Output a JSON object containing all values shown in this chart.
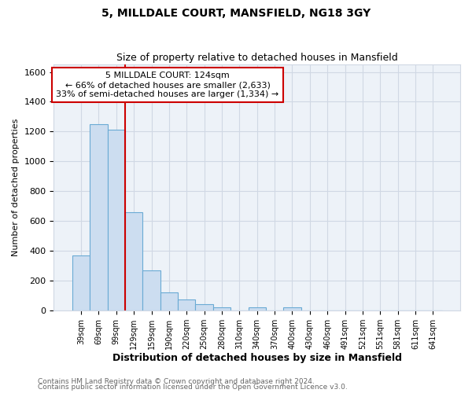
{
  "title": "5, MILLDALE COURT, MANSFIELD, NG18 3GY",
  "subtitle": "Size of property relative to detached houses in Mansfield",
  "xlabel": "Distribution of detached houses by size in Mansfield",
  "ylabel": "Number of detached properties",
  "bar_labels": [
    "39sqm",
    "69sqm",
    "99sqm",
    "129sqm",
    "159sqm",
    "190sqm",
    "220sqm",
    "250sqm",
    "280sqm",
    "310sqm",
    "340sqm",
    "370sqm",
    "400sqm",
    "430sqm",
    "460sqm",
    "491sqm",
    "521sqm",
    "551sqm",
    "581sqm",
    "611sqm",
    "641sqm"
  ],
  "bar_heights": [
    370,
    1250,
    1210,
    660,
    270,
    120,
    75,
    40,
    20,
    0,
    18,
    0,
    18,
    0,
    0,
    0,
    0,
    0,
    0,
    0,
    0
  ],
  "bar_color": "#ccddf0",
  "bar_edge_color": "#6aaad4",
  "bar_edge_width": 0.8,
  "vline_color": "#cc0000",
  "vline_x_index": 2.5,
  "annotation_title": "5 MILLDALE COURT: 124sqm",
  "annotation_line1": "← 66% of detached houses are smaller (2,633)",
  "annotation_line2": "33% of semi-detached houses are larger (1,334) →",
  "annotation_box_color": "#ffffff",
  "annotation_box_edge": "#cc0000",
  "ylim": [
    0,
    1650
  ],
  "yticks": [
    0,
    200,
    400,
    600,
    800,
    1000,
    1200,
    1400,
    1600
  ],
  "grid_color": "#d0d8e4",
  "bg_color": "#ffffff",
  "plot_bg_color": "#edf2f8",
  "footer1": "Contains HM Land Registry data © Crown copyright and database right 2024.",
  "footer2": "Contains public sector information licensed under the Open Government Licence v3.0."
}
